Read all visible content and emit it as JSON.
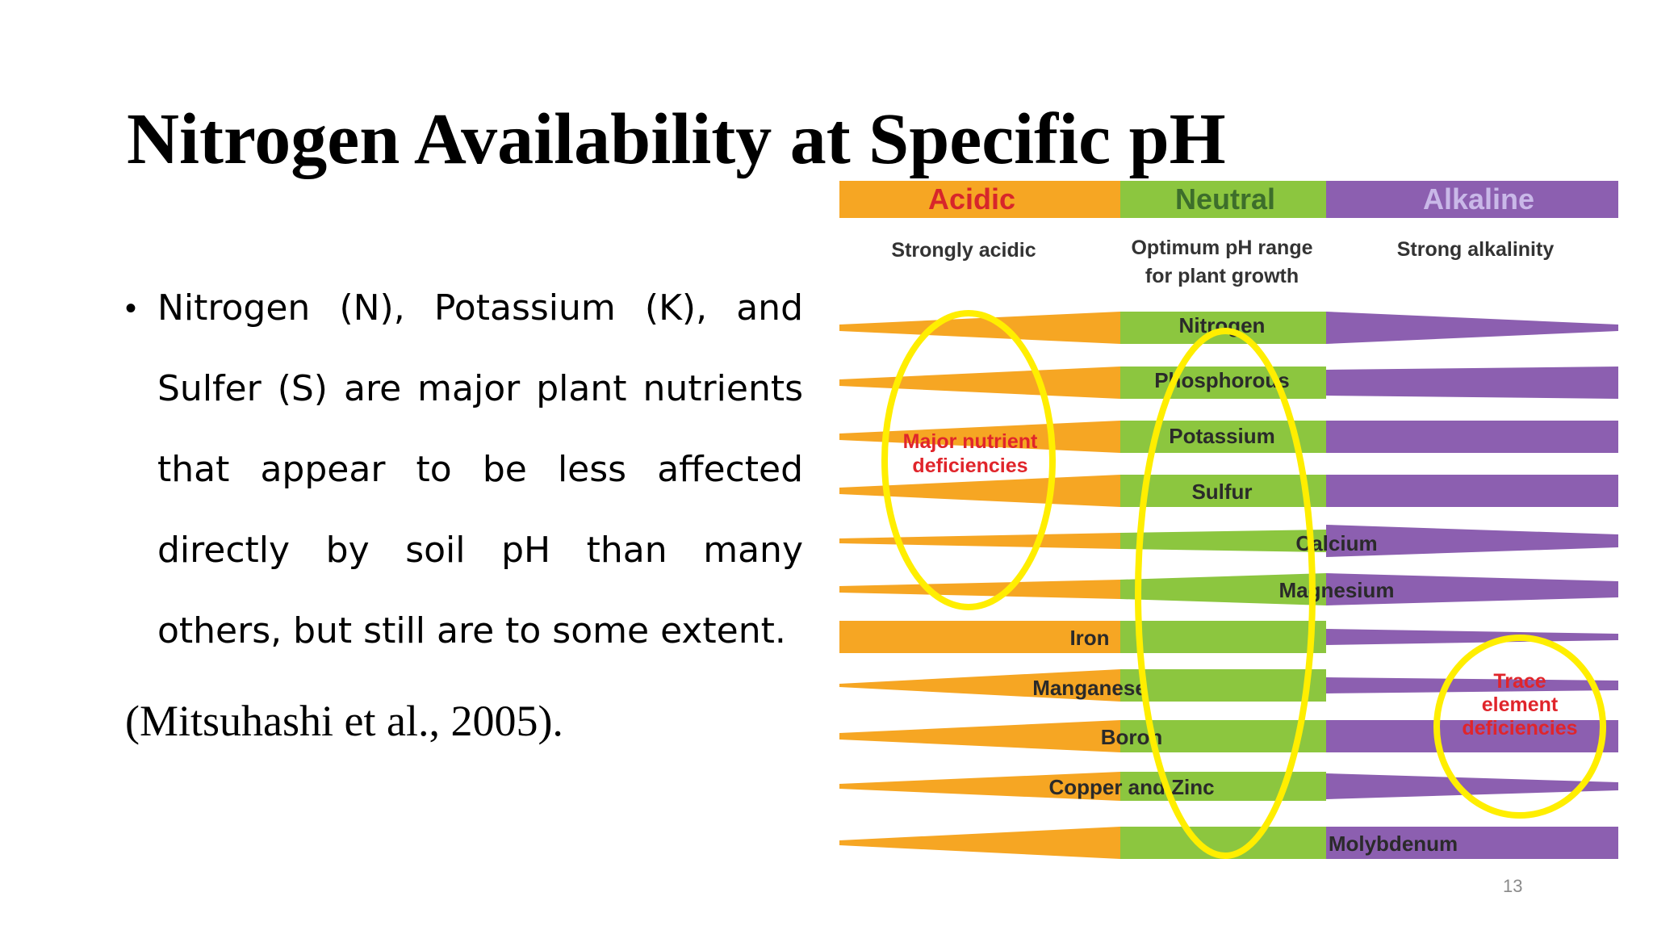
{
  "slide": {
    "title": "Nitrogen Availability at Specific pH",
    "bullet": "Nitrogen (N), Potassium (K), and Sulfer (S) are major plant nutrients that appear to be less affected directly by soil pH than many others, but still are to some extent.",
    "citation": "(Mitsuhashi et al., 2005).",
    "page_number": "13"
  },
  "diagram": {
    "zones": [
      {
        "label": "Acidic",
        "sublabel": "Strongly acidic",
        "color": "#f6a623",
        "text_color": "#d7262b"
      },
      {
        "label": "Neutral",
        "sublabel_line1": "Optimum pH range",
        "sublabel_line2": "for plant growth",
        "color": "#8cc63f",
        "text_color": "#3d6e2b"
      },
      {
        "label": "Alkaline",
        "sublabel": "Strong alkalinity",
        "color": "#8c5fb0",
        "text_color": "#c9b8e8"
      }
    ],
    "nutrients": [
      "Nitrogen",
      "Phosphorous",
      "Potassium",
      "Sulfur",
      "Calcium",
      "Magnesium",
      "Iron",
      "Manganese",
      "Boron",
      "Copper and Zinc",
      "Molybdenum"
    ],
    "annotations": {
      "major_line1": "Major nutrient",
      "major_line2": "deficiencies",
      "trace_line1": "Trace",
      "trace_line2": "element",
      "trace_line3": "deficiencies"
    },
    "highlight_color": "#ffee00",
    "annotation_color": "#e0252b"
  }
}
